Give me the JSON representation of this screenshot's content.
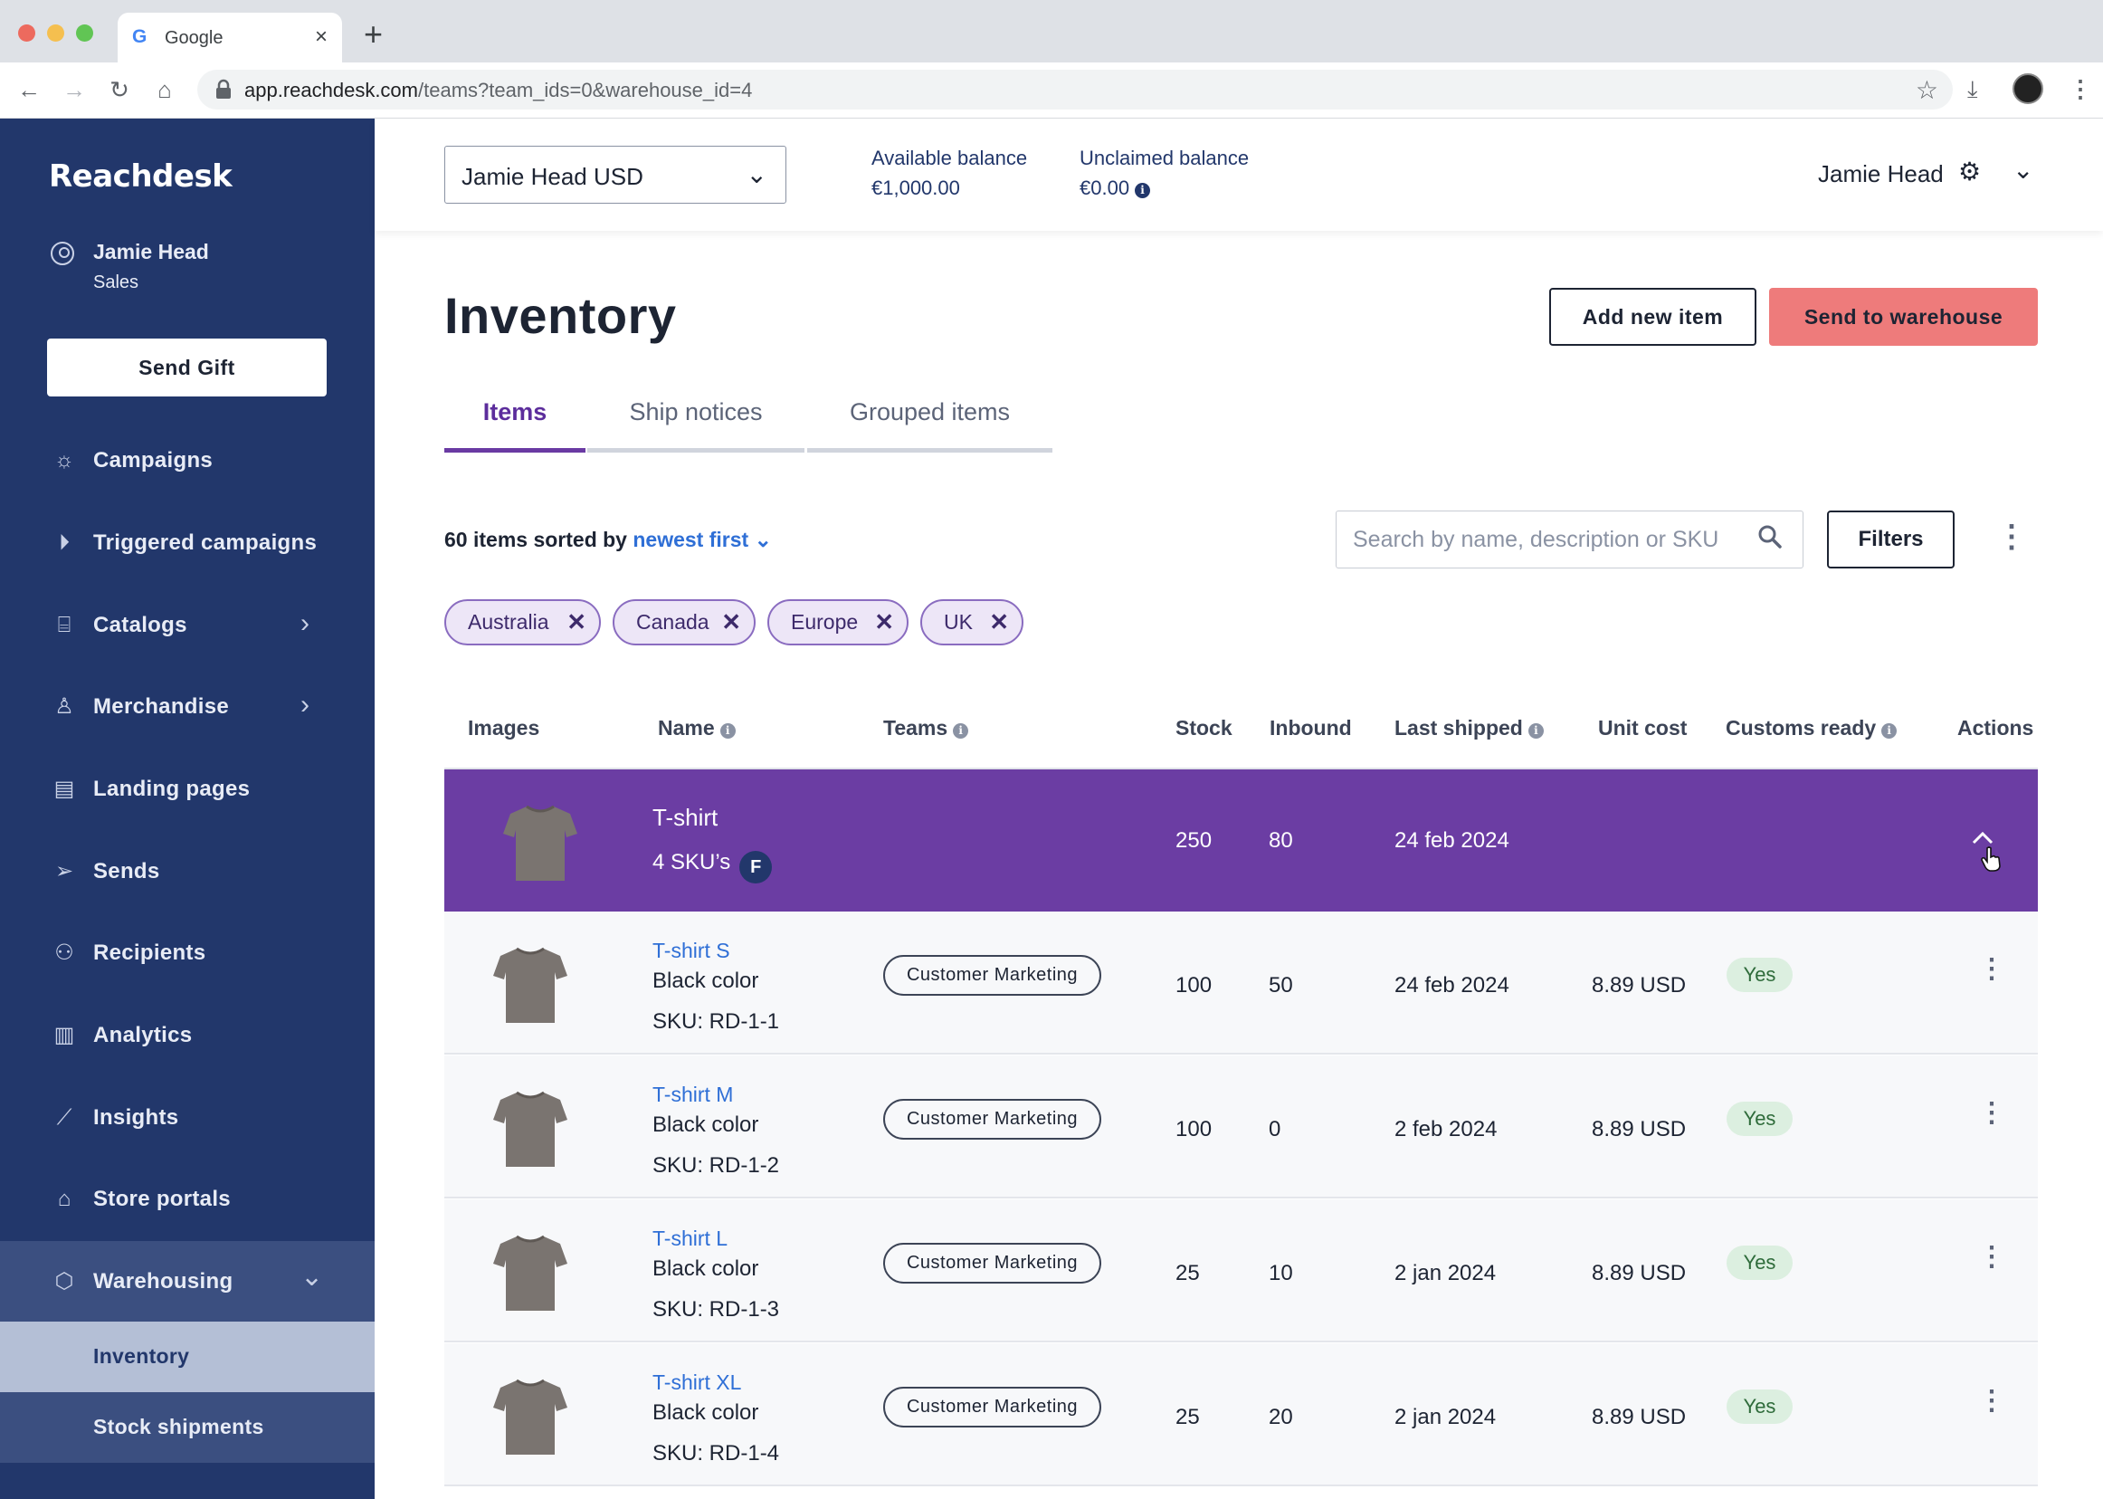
{
  "browser": {
    "tab_title": "Google",
    "url_host": "app.reachdesk.com",
    "url_path": "/teams?team_ids=0&warehouse_id=4"
  },
  "sidebar": {
    "logo": "Reachdesk",
    "user_name": "Jamie Head",
    "user_role": "Sales",
    "send_gift_label": "Send Gift",
    "items": [
      {
        "label": "Campaigns",
        "icon": "lightbulb-icon"
      },
      {
        "label": "Triggered campaigns",
        "icon": "play-circle-icon"
      },
      {
        "label": "Catalogs",
        "icon": "gift-icon"
      },
      {
        "label": "Merchandise",
        "icon": "tshirt-icon"
      },
      {
        "label": "Landing pages",
        "icon": "document-icon"
      },
      {
        "label": "Sends",
        "icon": "paper-plane-icon"
      },
      {
        "label": "Recipients",
        "icon": "people-icon"
      },
      {
        "label": "Analytics",
        "icon": "bar-chart-icon"
      },
      {
        "label": "Insights",
        "icon": "line-chart-icon"
      },
      {
        "label": "Store portals",
        "icon": "store-icon"
      },
      {
        "label": "Warehousing",
        "icon": "box-icon"
      }
    ],
    "sub_items": [
      {
        "label": "Inventory"
      },
      {
        "label": "Stock shipments"
      }
    ]
  },
  "header": {
    "account_select": "Jamie Head USD",
    "available_label": "Available balance",
    "available_value": "€1,000.00",
    "unclaimed_label": "Unclaimed balance",
    "unclaimed_value": "€0.00",
    "user": "Jamie Head"
  },
  "page": {
    "title": "Inventory",
    "add_new_label": "Add new item",
    "send_warehouse_label": "Send to warehouse",
    "tabs": [
      {
        "label": "Items"
      },
      {
        "label": "Ship notices"
      },
      {
        "label": "Grouped items"
      }
    ],
    "sort_prefix": "60 items sorted by ",
    "sort_value": "newest first",
    "search_placeholder": "Search by name, description or SKU",
    "filters_label": "Filters",
    "chips": [
      {
        "label": "Australia"
      },
      {
        "label": "Canada"
      },
      {
        "label": "Europe"
      },
      {
        "label": "UK"
      }
    ]
  },
  "table": {
    "headers": {
      "images": "Images",
      "name": "Name",
      "teams": "Teams",
      "stock": "Stock",
      "inbound": "Inbound",
      "last_shipped": "Last shipped",
      "unit_cost": "Unit cost",
      "customs_ready": "Customs ready",
      "actions": "Actions"
    },
    "group": {
      "name": "T-shirt",
      "skus": "4 SKU’s",
      "badge": "F",
      "stock": "250",
      "inbound": "80",
      "last_shipped": "24 feb 2024"
    },
    "rows": [
      {
        "name": "T-shirt S",
        "desc": "Black color",
        "sku": "SKU: RD-1-1",
        "team": "Customer Marketing",
        "stock": "100",
        "inbound": "50",
        "last_shipped": "24 feb 2024",
        "unit_cost": "8.89 USD",
        "customs": "Yes"
      },
      {
        "name": "T-shirt M",
        "desc": "Black color",
        "sku": "SKU: RD-1-2",
        "team": "Customer Marketing",
        "stock": "100",
        "inbound": "0",
        "last_shipped": "2 feb 2024",
        "unit_cost": "8.89 USD",
        "customs": "Yes"
      },
      {
        "name": "T-shirt L",
        "desc": "Black color",
        "sku": "SKU: RD-1-3",
        "team": "Customer Marketing",
        "stock": "25",
        "inbound": "10",
        "last_shipped": "2 jan 2024",
        "unit_cost": "8.89 USD",
        "customs": "Yes"
      },
      {
        "name": "T-shirt XL",
        "desc": "Black color",
        "sku": "SKU: RD-1-4",
        "team": "Customer Marketing",
        "stock": "25",
        "inbound": "20",
        "last_shipped": "2 jan 2024",
        "unit_cost": "8.89 USD",
        "customs": "Yes"
      }
    ]
  }
}
